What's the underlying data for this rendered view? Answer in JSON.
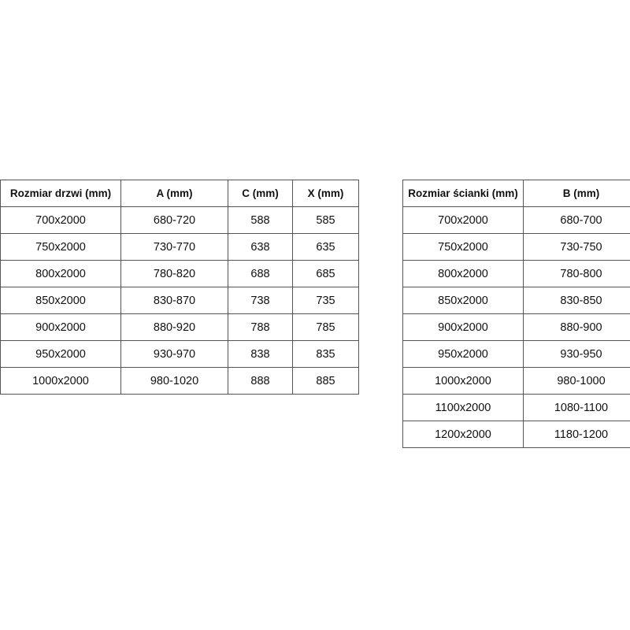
{
  "doors_table": {
    "headers": [
      "Rozmiar drzwi (mm)",
      "A (mm)",
      "C (mm)",
      "X (mm)"
    ],
    "rows": [
      [
        "700x2000",
        "680-720",
        "588",
        "585"
      ],
      [
        "750x2000",
        "730-770",
        "638",
        "635"
      ],
      [
        "800x2000",
        "780-820",
        "688",
        "685"
      ],
      [
        "850x2000",
        "830-870",
        "738",
        "735"
      ],
      [
        "900x2000",
        "880-920",
        "788",
        "785"
      ],
      [
        "950x2000",
        "930-970",
        "838",
        "835"
      ],
      [
        "1000x2000",
        "980-1020",
        "888",
        "885"
      ]
    ]
  },
  "wall_table": {
    "headers": [
      "Rozmiar ścianki (mm)",
      "B (mm)"
    ],
    "rows": [
      [
        "700x2000",
        "680-700"
      ],
      [
        "750x2000",
        "730-750"
      ],
      [
        "800x2000",
        "780-800"
      ],
      [
        "850x2000",
        "830-850"
      ],
      [
        "900x2000",
        "880-900"
      ],
      [
        "950x2000",
        "930-950"
      ],
      [
        "1000x2000",
        "980-1000"
      ],
      [
        "1100x2000",
        "1080-1100"
      ],
      [
        "1200x2000",
        "1180-1200"
      ]
    ]
  }
}
